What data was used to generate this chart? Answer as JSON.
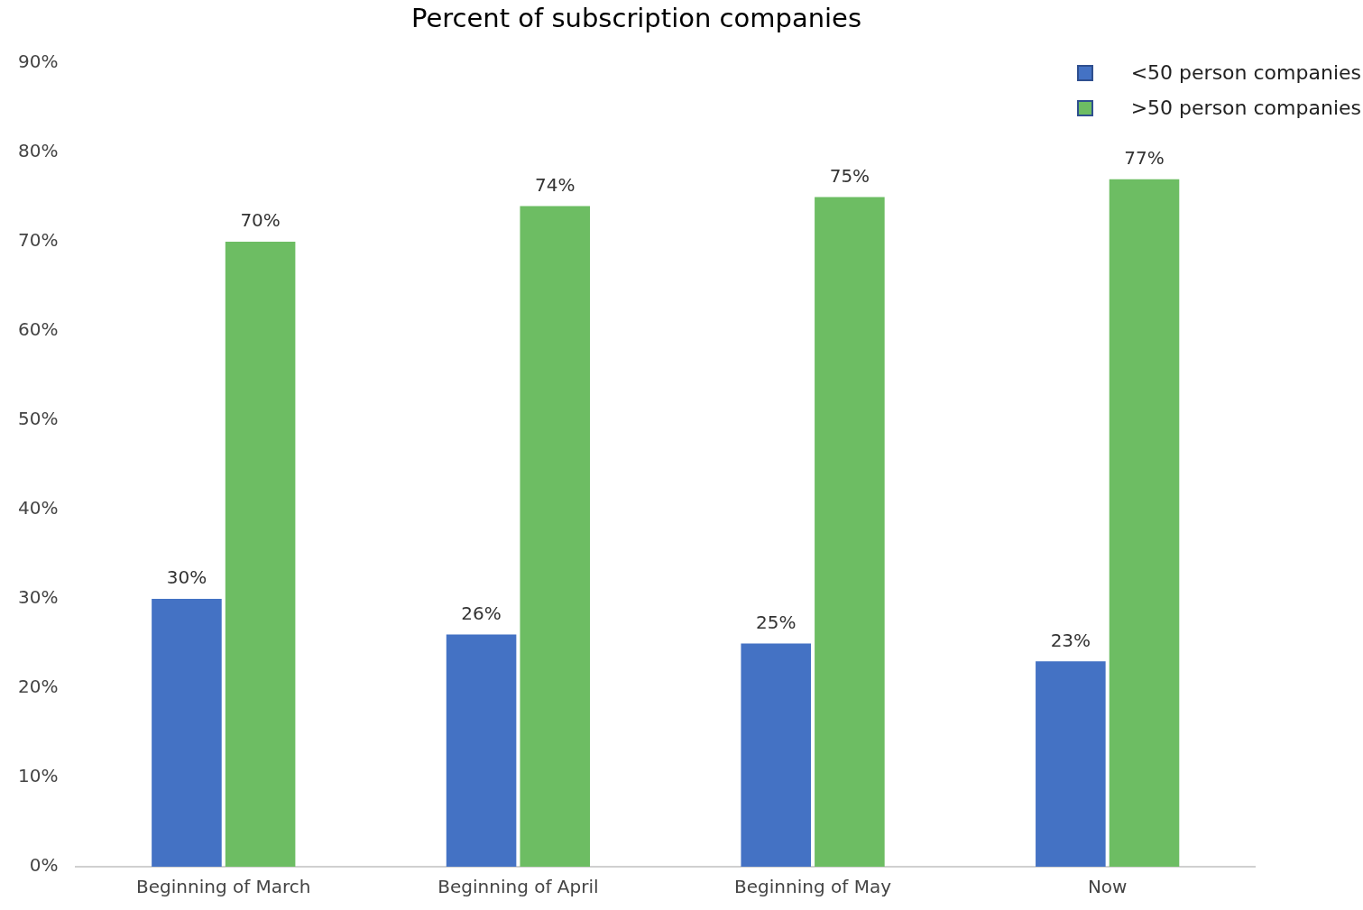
{
  "chart_data": {
    "type": "bar",
    "title": "Percent of subscription companies",
    "categories": [
      "Beginning of March",
      "Beginning of April",
      "Beginning of May",
      "Now"
    ],
    "series": [
      {
        "name": "<50 person companies",
        "color": "#4472c4",
        "values": [
          30,
          26,
          25,
          23
        ],
        "value_labels": [
          "30%",
          "26%",
          "25%",
          "23%"
        ]
      },
      {
        "name": ">50 person companies",
        "color": "#6dbd63",
        "values": [
          70,
          74,
          75,
          77
        ],
        "value_labels": [
          "70%",
          "74%",
          "75%",
          "77%"
        ]
      }
    ],
    "ylim": [
      0,
      90
    ],
    "yticks": [
      {
        "value": 0,
        "label": "0%"
      },
      {
        "value": 10,
        "label": "10%"
      },
      {
        "value": 20,
        "label": "20%"
      },
      {
        "value": 30,
        "label": "30%"
      },
      {
        "value": 40,
        "label": "40%"
      },
      {
        "value": 50,
        "label": "50%"
      },
      {
        "value": 60,
        "label": "60%"
      },
      {
        "value": 70,
        "label": "70%"
      },
      {
        "value": 80,
        "label": "80%"
      },
      {
        "value": 90,
        "label": "90%"
      }
    ],
    "legend": "top right"
  }
}
